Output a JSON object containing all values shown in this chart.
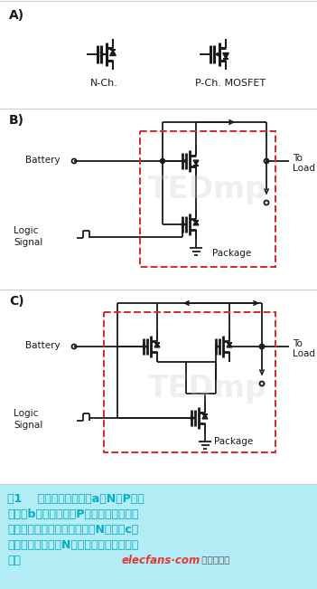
{
  "bg_color": "#ffffff",
  "caption_bg": "#b3ecf5",
  "title_color": "#00b0c8",
  "label_A": "A)",
  "label_B": "B)",
  "label_C": "C)",
  "nch_label": "N-Ch.",
  "pch_label": "P-Ch. MOSFET",
  "battery_label": "Battery",
  "logic_label_line1": "Logic",
  "logic_label_line2": "Signal",
  "package_label": "Package",
  "to_load_label1": "To",
  "to_load_label2": "Load",
  "caption_line1": "图1    傳統負載開關表現a）N和P溝道",
  "caption_line2": "描述，b）在高側、由P溝道組成的簡單負",
  "caption_line3": "載開關與通過邏輯信號驅動的N溝道，c）",
  "caption_line4": "當不啟用時高側雙N溝道提供了二極體電流",
  "caption_line5": "阻斷",
  "elecfans_text": "elecfans·com",
  "elecfans_suffix": " 电子烧烧友",
  "watermark_text": "TEDmp",
  "dashed_color": "#d32f2f",
  "line_color": "#1a1a1a",
  "text_color": "#1a1a1a",
  "gray_text": "#888888"
}
